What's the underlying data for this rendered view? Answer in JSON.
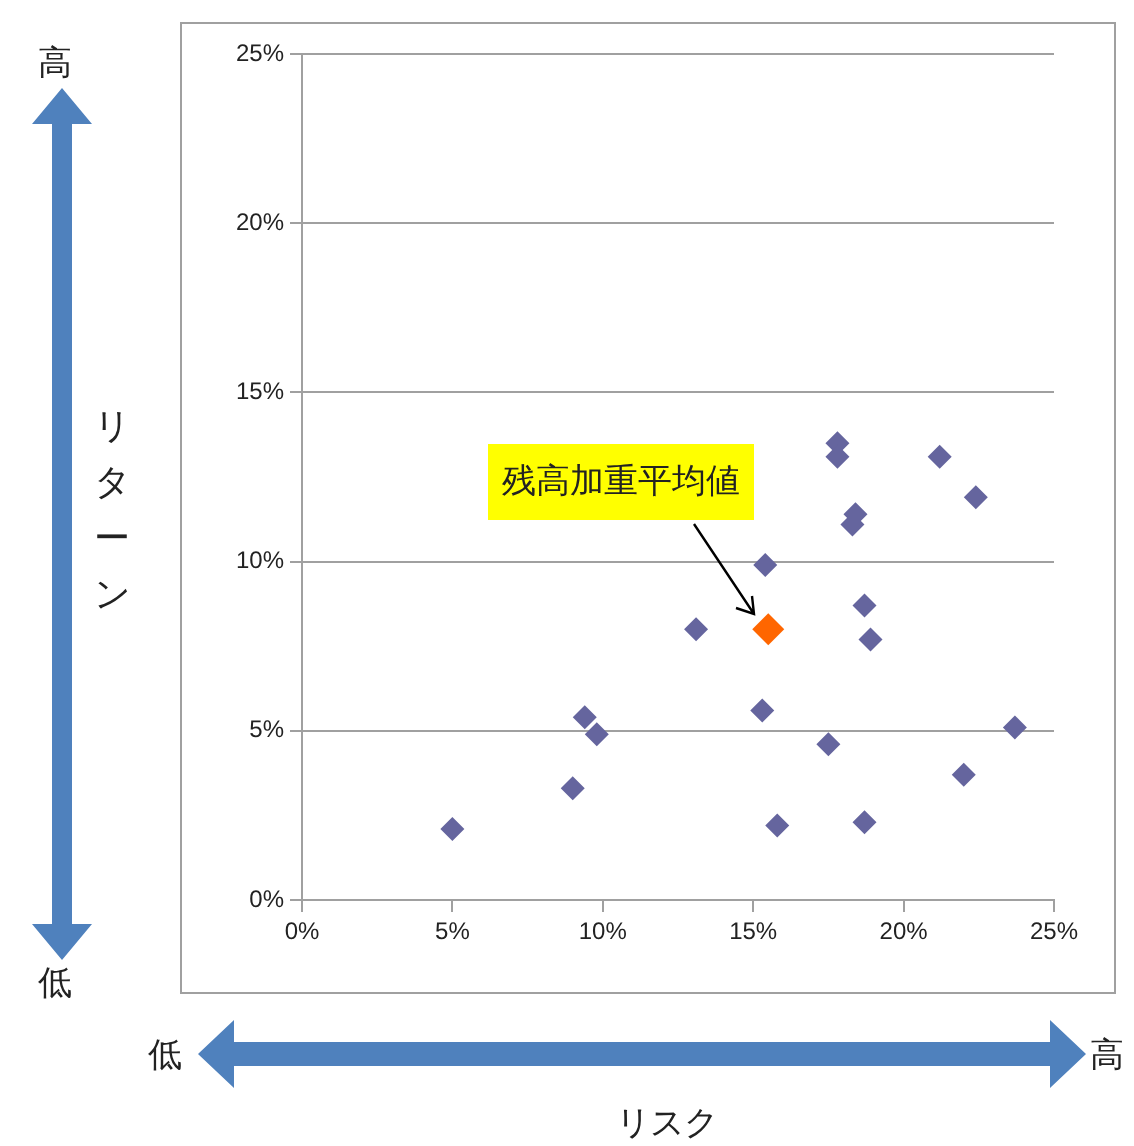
{
  "chart_data": {
    "type": "scatter",
    "xlabel": "リスク",
    "ylabel": "リターン",
    "xlim": [
      0,
      25
    ],
    "ylim": [
      0,
      25
    ],
    "xticks": [
      {
        "value": 0,
        "label": "0%"
      },
      {
        "value": 5,
        "label": "5%"
      },
      {
        "value": 10,
        "label": "10%"
      },
      {
        "value": 15,
        "label": "15%"
      },
      {
        "value": 20,
        "label": "20%"
      },
      {
        "value": 25,
        "label": "25%"
      }
    ],
    "yticks": [
      {
        "value": 0,
        "label": "0%"
      },
      {
        "value": 5,
        "label": "5%"
      },
      {
        "value": 10,
        "label": "10%"
      },
      {
        "value": 15,
        "label": "15%"
      },
      {
        "value": 20,
        "label": "20%"
      },
      {
        "value": 25,
        "label": "25%"
      }
    ],
    "grid": "y",
    "legend": false,
    "marker": "diamond",
    "series": [
      {
        "color": "#65659e",
        "x": [
          5.0,
          9.0,
          9.4,
          9.8,
          13.1,
          15.3,
          15.4,
          15.8,
          17.5,
          17.8,
          17.8,
          18.4,
          18.3,
          18.7,
          18.9,
          18.7,
          21.2,
          22.4,
          22.0,
          23.7
        ],
        "values": [
          2.1,
          3.3,
          5.4,
          4.9,
          8.0,
          5.6,
          9.9,
          2.2,
          4.6,
          13.5,
          13.1,
          11.4,
          11.1,
          8.7,
          7.7,
          2.3,
          13.1,
          11.9,
          3.7,
          5.1
        ]
      },
      {
        "color": "#ff6600",
        "x": [
          15.5
        ],
        "values": [
          8.0
        ]
      }
    ],
    "annotations": [
      "残高加重平均値",
      "高",
      "低",
      "低",
      "高"
    ]
  }
}
